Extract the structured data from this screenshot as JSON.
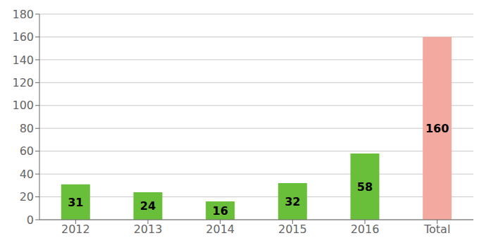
{
  "chart_data": {
    "type": "bar",
    "categories": [
      "2012",
      "2013",
      "2014",
      "2015",
      "2016",
      "Total"
    ],
    "values": [
      31,
      24,
      16,
      32,
      58,
      160
    ],
    "colors": [
      "#6abf3a",
      "#6abf3a",
      "#6abf3a",
      "#6abf3a",
      "#6abf3a",
      "#f4a9a0"
    ],
    "ylim": [
      0,
      180
    ],
    "yticks": [
      0,
      20,
      40,
      60,
      80,
      100,
      120,
      140,
      160,
      180
    ],
    "grid": true,
    "data_labels": true
  }
}
